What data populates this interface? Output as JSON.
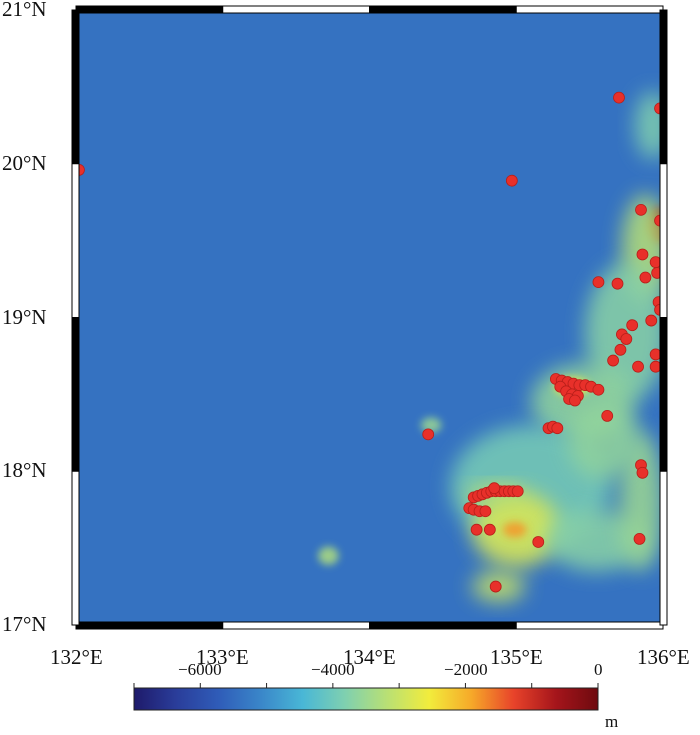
{
  "map": {
    "extent": {
      "lon_min": 132,
      "lon_max": 136,
      "lat_min": 17,
      "lat_max": 21
    },
    "lat_ticks": [
      {
        "value": 21,
        "label": "21°N"
      },
      {
        "value": 20,
        "label": "20°N"
      },
      {
        "value": 19,
        "label": "19°N"
      },
      {
        "value": 18,
        "label": "18°N"
      },
      {
        "value": 17,
        "label": "17°N"
      }
    ],
    "lon_ticks": [
      {
        "value": 132,
        "label": "132°E"
      },
      {
        "value": 133,
        "label": "133°E"
      },
      {
        "value": 134,
        "label": "134°E"
      },
      {
        "value": 135,
        "label": "135°E"
      },
      {
        "value": 136,
        "label": "136°E"
      }
    ],
    "point_color": "#e8302a",
    "points": [
      [
        135.7,
        20.43
      ],
      [
        135.98,
        20.36
      ],
      [
        132.02,
        19.96
      ],
      [
        134.97,
        19.89
      ],
      [
        135.85,
        19.7
      ],
      [
        135.98,
        19.63
      ],
      [
        135.86,
        19.41
      ],
      [
        135.95,
        19.36
      ],
      [
        135.88,
        19.26
      ],
      [
        135.96,
        19.29
      ],
      [
        135.56,
        19.23
      ],
      [
        135.69,
        19.22
      ],
      [
        135.97,
        19.1
      ],
      [
        135.98,
        19.05
      ],
      [
        135.92,
        18.98
      ],
      [
        135.79,
        18.95
      ],
      [
        135.72,
        18.89
      ],
      [
        135.75,
        18.86
      ],
      [
        135.71,
        18.79
      ],
      [
        135.95,
        18.76
      ],
      [
        135.66,
        18.72
      ],
      [
        135.83,
        18.68
      ],
      [
        135.95,
        18.68
      ],
      [
        135.27,
        18.6
      ],
      [
        135.31,
        18.59
      ],
      [
        135.35,
        18.58
      ],
      [
        135.39,
        18.57
      ],
      [
        135.43,
        18.56
      ],
      [
        135.47,
        18.56
      ],
      [
        135.51,
        18.55
      ],
      [
        135.56,
        18.53
      ],
      [
        135.3,
        18.55
      ],
      [
        135.34,
        18.52
      ],
      [
        135.38,
        18.5
      ],
      [
        135.42,
        18.49
      ],
      [
        135.36,
        18.47
      ],
      [
        135.4,
        18.46
      ],
      [
        135.62,
        18.36
      ],
      [
        135.22,
        18.28
      ],
      [
        135.25,
        18.29
      ],
      [
        135.28,
        18.28
      ],
      [
        134.4,
        18.24
      ],
      [
        135.85,
        18.04
      ],
      [
        135.86,
        17.99
      ],
      [
        134.71,
        17.83
      ],
      [
        134.74,
        17.84
      ],
      [
        134.77,
        17.85
      ],
      [
        134.8,
        17.86
      ],
      [
        134.83,
        17.87
      ],
      [
        134.86,
        17.87
      ],
      [
        134.89,
        17.87
      ],
      [
        134.92,
        17.87
      ],
      [
        134.95,
        17.87
      ],
      [
        134.98,
        17.87
      ],
      [
        135.01,
        17.87
      ],
      [
        134.85,
        17.89
      ],
      [
        134.68,
        17.76
      ],
      [
        134.71,
        17.75
      ],
      [
        134.75,
        17.74
      ],
      [
        134.79,
        17.74
      ],
      [
        134.73,
        17.62
      ],
      [
        134.82,
        17.62
      ],
      [
        135.15,
        17.54
      ],
      [
        135.84,
        17.56
      ],
      [
        134.86,
        17.25
      ]
    ],
    "shallow_features": [
      {
        "lon": 135.97,
        "lat": 19.6,
        "rx": 0.08,
        "ry": 0.12,
        "depth": -300
      },
      {
        "lon": 135.93,
        "lat": 20.25,
        "rx": 0.12,
        "ry": 0.22,
        "depth": -3800
      },
      {
        "lon": 135.88,
        "lat": 19.45,
        "rx": 0.16,
        "ry": 0.35,
        "depth": -3200
      },
      {
        "lon": 135.75,
        "lat": 18.9,
        "rx": 0.28,
        "ry": 0.45,
        "depth": -3700
      },
      {
        "lon": 135.45,
        "lat": 18.45,
        "rx": 0.35,
        "ry": 0.25,
        "depth": -3600
      },
      {
        "lon": 135.1,
        "lat": 17.9,
        "rx": 0.55,
        "ry": 0.4,
        "depth": -3900
      },
      {
        "lon": 135.0,
        "lat": 17.62,
        "rx": 0.3,
        "ry": 0.25,
        "depth": -2800
      },
      {
        "lon": 134.99,
        "lat": 17.62,
        "rx": 0.08,
        "ry": 0.05,
        "depth": -1800
      },
      {
        "lon": 134.88,
        "lat": 17.25,
        "rx": 0.18,
        "ry": 0.1,
        "depth": -3000
      },
      {
        "lon": 135.55,
        "lat": 17.55,
        "rx": 0.35,
        "ry": 0.2,
        "depth": -3700
      },
      {
        "lon": 135.85,
        "lat": 17.8,
        "rx": 0.15,
        "ry": 0.45,
        "depth": -3500
      },
      {
        "lon": 135.6,
        "lat": 18.2,
        "rx": 0.25,
        "ry": 0.25,
        "depth": -3600
      },
      {
        "lon": 134.42,
        "lat": 18.3,
        "rx": 0.07,
        "ry": 0.05,
        "depth": -3500
      },
      {
        "lon": 133.72,
        "lat": 17.45,
        "rx": 0.07,
        "ry": 0.06,
        "depth": -3300
      },
      {
        "lon": 135.38,
        "lat": 18.55,
        "rx": 0.12,
        "ry": 0.06,
        "depth": -2600
      },
      {
        "lon": 134.85,
        "lat": 17.85,
        "rx": 0.2,
        "ry": 0.06,
        "depth": -3100
      }
    ],
    "background_depth": -5400
  },
  "colorbar": {
    "min": -7000,
    "max": 0,
    "ticks": [
      {
        "value": -6000,
        "label": "−6000"
      },
      {
        "value": -4000,
        "label": "−4000"
      },
      {
        "value": -2000,
        "label": "−2000"
      },
      {
        "value": 0,
        "label": "0"
      }
    ],
    "unit": "m",
    "colors": [
      "#1e1a6a",
      "#2a3d9a",
      "#2f5cb8",
      "#3a86c9",
      "#49b7d6",
      "#7fd0b0",
      "#b9e074",
      "#f2ec3c",
      "#f6a929",
      "#e8432a",
      "#a5151b",
      "#6e0a0f"
    ]
  }
}
